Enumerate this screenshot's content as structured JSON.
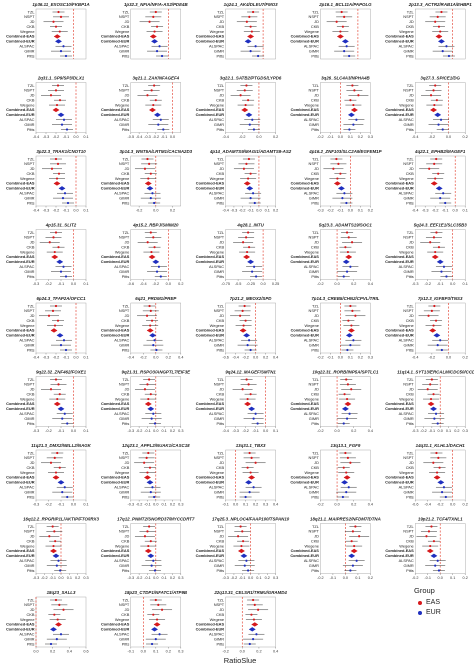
{
  "figure": {
    "x_axis_label": "RatioSlue",
    "legend": {
      "title": "Group",
      "items": [
        {
          "label": "EAS",
          "color": "#d7191c"
        },
        {
          "label": "EUR",
          "color": "#1f2fbf"
        }
      ]
    }
  },
  "chart_data": {
    "type": "forest",
    "rows": [
      "TZL",
      "NSPT",
      "JD",
      "CKB",
      "Wegene",
      "Combined-EAS",
      "Combined-EUR",
      "ALSPAC",
      "GIMR",
      "Pitts"
    ],
    "row_groups": [
      "EAS",
      "EAS",
      "EAS",
      "EAS",
      "EAS",
      "EAS",
      "EUR",
      "EUR",
      "EUR",
      "EUR"
    ],
    "combined_rows": [
      "Combined-EAS",
      "Combined-EUR"
    ],
    "reference_line": 0,
    "panels": [
      {
        "title": "1p36.11_EXOSC10/FKBP1A",
        "xlim": [
          -0.3,
          0.1
        ],
        "ticks": [],
        "est": [
          -0.12,
          -0.1,
          -0.16,
          -0.14,
          -0.11,
          -0.13,
          -0.12,
          -0.08,
          -0.1,
          -0.06
        ]
      },
      {
        "title": "1p32.3_NFIA/NFIA-AS2/PDE4B",
        "xlim": [
          -0.3,
          0.1
        ],
        "ticks": [],
        "est": [
          -0.1,
          -0.12,
          -0.15,
          -0.09,
          -0.11,
          -0.12,
          -0.11,
          -0.07,
          -0.09,
          -0.05
        ]
      },
      {
        "title": "1q24.1_AK4/DLEU7/FMO3",
        "xlim": [
          -0.3,
          0.1
        ],
        "ticks": [],
        "est": [
          -0.08,
          -0.11,
          -0.13,
          -0.1,
          -0.09,
          -0.1,
          -0.12,
          -0.06,
          -0.1,
          -0.04
        ]
      },
      {
        "title": "2p16.1_BCL11A/PAPOLG",
        "xlim": [
          -0.3,
          0.1
        ],
        "ticks": [],
        "est": [
          -0.13,
          -0.11,
          -0.17,
          -0.12,
          -0.14,
          -0.14,
          -0.1,
          -0.09,
          -0.11,
          -0.07
        ]
      },
      {
        "title": "2p13.3_ACTR2/RAB1A/EHBP1",
        "xlim": [
          -0.3,
          0.1
        ],
        "ticks": [],
        "est": [
          -0.09,
          -0.12,
          -0.14,
          -0.11,
          -0.1,
          -0.11,
          -0.09,
          -0.05,
          -0.08,
          -0.03
        ]
      },
      {
        "title": "2q31.1_SP9/SP3/DLX1",
        "xlim": [
          -0.4,
          0.1
        ],
        "ticks": [
          -0.4,
          -0.3,
          -0.2,
          -0.1,
          0.0,
          0.1
        ],
        "est": [
          -0.18,
          -0.2,
          -0.25,
          -0.16,
          -0.19,
          -0.2,
          -0.15,
          -0.12,
          -0.14,
          -0.09
        ]
      },
      {
        "title": "3q21.1_ZAK/NFAGEF4",
        "xlim": [
          -0.5,
          0.1
        ],
        "ticks": [
          -0.5,
          -0.4,
          -0.3,
          -0.2,
          -0.1,
          0.0
        ],
        "est": [
          -0.22,
          -0.25,
          -0.3,
          -0.2,
          -0.23,
          -0.24,
          -0.18,
          -0.14,
          -0.17,
          -0.11
        ]
      },
      {
        "title": "3q22.1_SATB2/PTGDS/LYPD6",
        "xlim": [
          -0.4,
          0.2
        ],
        "ticks": [
          -0.4,
          -0.2,
          0.0,
          0.2
        ],
        "est": [
          -0.15,
          -0.17,
          -0.22,
          -0.13,
          -0.16,
          -0.17,
          -0.12,
          -0.08,
          -0.11,
          -0.06
        ]
      },
      {
        "title": "3q26_SLC4A3/NPHA4B",
        "xlim": [
          -0.2,
          0.3
        ],
        "ticks": [
          -0.2,
          -0.1,
          0.0,
          0.1,
          0.2,
          0.3
        ],
        "est": [
          0.12,
          0.14,
          0.18,
          0.1,
          0.13,
          0.14,
          0.11,
          0.16,
          0.13,
          0.09
        ]
      },
      {
        "title": "3q27.3_SPICE1/DG",
        "xlim": [
          -0.4,
          0.2
        ],
        "ticks": [
          -0.4,
          -0.2,
          0.0,
          0.2
        ],
        "est": [
          -0.16,
          -0.18,
          -0.21,
          -0.14,
          -0.17,
          -0.18,
          -0.13,
          -0.09,
          -0.12,
          -0.07
        ]
      },
      {
        "title": "3p22.3_TRAK1/CNOT10",
        "xlim": [
          -0.4,
          0.1
        ],
        "ticks": [
          -0.4,
          -0.3,
          -0.2,
          -0.1,
          0.0,
          0.1
        ],
        "est": [
          -0.2,
          -0.18,
          -0.24,
          -0.17,
          -0.19,
          -0.19,
          -0.14,
          -0.11,
          -0.13,
          -0.08
        ]
      },
      {
        "title": "3p14.3_WNT5A/LRTM1/CACNA2D3",
        "xlim": [
          -0.3,
          0.3
        ],
        "ticks": [
          -0.2,
          0.0,
          0.2
        ],
        "est": [
          -0.1,
          -0.08,
          -0.13,
          -0.06,
          -0.09,
          -0.09,
          -0.07,
          -0.04,
          -0.06,
          -0.02
        ]
      },
      {
        "title": "4p14_ADAMTS9/MAGI1/ADAMTS9-AS2",
        "xlim": [
          -0.4,
          0.2
        ],
        "ticks": [
          -0.4,
          -0.3,
          -0.2,
          -0.1,
          0.0,
          0.1,
          0.2
        ],
        "est": [
          -0.12,
          -0.15,
          -0.18,
          -0.1,
          -0.13,
          -0.14,
          -0.11,
          -0.07,
          -0.1,
          -0.05
        ]
      },
      {
        "title": "4p16.2_ZNF103/SLC2A9/EGFEM1P",
        "xlim": [
          -0.3,
          0.2
        ],
        "ticks": [
          -0.3,
          -0.2,
          -0.1,
          0.0,
          0.1,
          0.2
        ],
        "est": [
          -0.14,
          -0.12,
          -0.17,
          -0.1,
          -0.13,
          -0.13,
          -0.09,
          -0.06,
          -0.08,
          -0.04
        ]
      },
      {
        "title": "4q22.1_EPHB2/MAGEF1",
        "xlim": [
          -0.4,
          0.1
        ],
        "ticks": [
          -0.4,
          -0.3,
          -0.2,
          -0.1,
          0.0,
          0.1
        ],
        "est": [
          -0.19,
          -0.21,
          -0.26,
          -0.17,
          -0.2,
          -0.21,
          -0.16,
          -0.12,
          -0.15,
          -0.1
        ]
      },
      {
        "title": "4p15.31_SLIT2",
        "xlim": [
          -0.3,
          0.1
        ],
        "ticks": [
          -0.3,
          -0.2,
          -0.1,
          0.0,
          0.1
        ],
        "est": [
          -0.14,
          -0.16,
          -0.19,
          -0.12,
          -0.15,
          -0.15,
          -0.11,
          -0.08,
          -0.1,
          -0.06
        ]
      },
      {
        "title": "4p15.2_RBPJ/SMIM20",
        "xlim": [
          -0.6,
          0.2
        ],
        "ticks": [
          -0.6,
          -0.4,
          -0.2,
          0.0,
          0.2
        ],
        "est": [
          -0.28,
          -0.24,
          -0.33,
          -0.22,
          -0.27,
          -0.26,
          -0.2,
          -0.15,
          -0.18,
          -0.12
        ]
      },
      {
        "title": "4q28.1_INTU",
        "xlim": [
          -0.75,
          0.25
        ],
        "ticks": [
          -0.75,
          -0.5,
          -0.25,
          0.0,
          0.25
        ],
        "est": [
          -0.3,
          -0.34,
          -0.4,
          -0.28,
          -0.32,
          -0.33,
          -0.25,
          -0.18,
          -0.22,
          -0.14
        ]
      },
      {
        "title": "5q23.3_ADAMTS19/SOC1",
        "xlim": [
          -0.2,
          0.4
        ],
        "ticks": [
          -0.2,
          0.0,
          0.2,
          0.4
        ],
        "est": [
          0.12,
          0.14,
          0.18,
          0.1,
          0.13,
          0.14,
          0.11,
          0.16,
          0.12,
          0.08
        ]
      },
      {
        "title": "5q24.3_EEF1E1/SLC35B3",
        "xlim": [
          -0.3,
          0.1
        ],
        "ticks": [
          -0.3,
          -0.2,
          -0.1,
          0.0,
          0.1
        ],
        "est": [
          -0.13,
          -0.15,
          -0.18,
          -0.11,
          -0.14,
          -0.14,
          -0.1,
          -0.07,
          -0.09,
          -0.05
        ]
      },
      {
        "title": "6p24.3_TFAP2A/OFCC1",
        "xlim": [
          -0.4,
          0.1
        ],
        "ticks": [
          -0.4,
          -0.3,
          -0.2,
          -0.1,
          0.0,
          0.1
        ],
        "est": [
          -0.2,
          -0.23,
          -0.27,
          -0.18,
          -0.21,
          -0.22,
          -0.16,
          -0.12,
          -0.15,
          -0.1
        ]
      },
      {
        "title": "6q21_PRDM1/PREP",
        "xlim": [
          -0.4,
          0.4
        ],
        "ticks": [
          -0.4,
          -0.2,
          0.0,
          0.2,
          0.4
        ],
        "est": [
          -0.1,
          -0.08,
          -0.14,
          -0.06,
          -0.09,
          -0.09,
          -0.05,
          -0.02,
          -0.04,
          0.01
        ]
      },
      {
        "title": "7p21.2_MEOX2/SPD",
        "xlim": [
          -0.6,
          0.4
        ],
        "ticks": [
          -0.6,
          -0.4,
          -0.2,
          0.0,
          0.2,
          0.4
        ],
        "est": [
          -0.22,
          -0.26,
          -0.31,
          -0.2,
          -0.24,
          -0.25,
          -0.18,
          -0.13,
          -0.16,
          -0.1
        ]
      },
      {
        "title": "7p14.3_CREB5/CHN2/CPVL/TRIL",
        "xlim": [
          -0.2,
          0.3
        ],
        "ticks": [
          -0.2,
          -0.1,
          0.0,
          0.1,
          0.2,
          0.3
        ],
        "est": [
          0.1,
          0.12,
          0.15,
          0.08,
          0.11,
          0.11,
          0.09,
          0.13,
          0.1,
          0.07
        ]
      },
      {
        "title": "7p12.3_IGFBP3/TNS3",
        "xlim": [
          -0.4,
          0.2
        ],
        "ticks": [
          -0.4,
          -0.2,
          0.0,
          0.2
        ],
        "est": [
          -0.17,
          -0.2,
          -0.24,
          -0.15,
          -0.18,
          -0.19,
          -0.14,
          -0.1,
          -0.13,
          -0.08
        ]
      },
      {
        "title": "9q22.32_ZNF462/FOXE1",
        "xlim": [
          -0.3,
          0.1
        ],
        "ticks": [
          -0.3,
          -0.2,
          -0.1,
          0.0,
          0.1
        ],
        "est": [
          -0.14,
          -0.12,
          -0.18,
          -0.11,
          -0.13,
          -0.13,
          -0.1,
          -0.07,
          -0.09,
          -0.05
        ]
      },
      {
        "title": "9q21.31_RSPO3/ANGPTL7/EIF3E",
        "xlim": [
          -0.3,
          0.3
        ],
        "ticks": [
          -0.3,
          -0.2,
          -0.1,
          0.0,
          0.1,
          0.2,
          0.3
        ],
        "est": [
          -0.08,
          -0.1,
          -0.13,
          -0.06,
          -0.09,
          -0.09,
          -0.06,
          -0.03,
          -0.05,
          -0.01
        ]
      },
      {
        "title": "9q24.12_MAGEF/SMTN1",
        "xlim": [
          -0.4,
          0.1
        ],
        "ticks": [
          -0.4,
          -0.3,
          -0.2,
          -0.1,
          0.0,
          0.1
        ],
        "est": [
          -0.19,
          -0.17,
          -0.23,
          -0.15,
          -0.18,
          -0.18,
          -0.14,
          -0.1,
          -0.12,
          -0.08
        ]
      },
      {
        "title": "10q22.31_RORB/INP5A/SPTLC1",
        "xlim": [
          -0.2,
          0.4
        ],
        "ticks": [
          -0.2,
          0.0,
          0.2,
          0.4
        ],
        "est": [
          0.11,
          0.13,
          0.17,
          0.09,
          0.12,
          0.13,
          0.1,
          0.15,
          0.12,
          0.08
        ]
      },
      {
        "title": "11q14.1_SYT13/ERCALM/CDC50/CCDC81",
        "xlim": [
          -0.3,
          0.3
        ],
        "ticks": [
          -0.3,
          -0.2,
          -0.1,
          0.0,
          0.1,
          0.2,
          0.3
        ],
        "est": [
          -0.1,
          -0.12,
          -0.15,
          -0.08,
          -0.11,
          -0.11,
          -0.08,
          -0.05,
          -0.07,
          -0.03
        ]
      },
      {
        "title": "11q21.3_DMX2/NELL2/NAGK",
        "xlim": [
          -0.3,
          0.1
        ],
        "ticks": [
          -0.3,
          -0.2,
          -0.1,
          0.0,
          0.1
        ],
        "est": [
          -0.13,
          -0.15,
          -0.18,
          -0.11,
          -0.14,
          -0.14,
          -0.1,
          -0.07,
          -0.09,
          -0.05
        ]
      },
      {
        "title": "12q23.1_APPL2/NUAK1/CASC18",
        "xlim": [
          -0.3,
          0.3
        ],
        "ticks": [
          -0.3,
          -0.2,
          -0.1,
          0.0,
          0.1,
          0.2,
          0.3
        ],
        "est": [
          -0.09,
          -0.11,
          -0.14,
          -0.07,
          -0.1,
          -0.1,
          -0.07,
          -0.04,
          -0.06,
          -0.02
        ]
      },
      {
        "title": "13q31.1_TBX3",
        "xlim": [
          -0.1,
          0.4
        ],
        "ticks": [
          -0.1,
          0.0,
          0.1,
          0.2,
          0.3,
          0.4
        ],
        "est": [
          0.14,
          0.16,
          0.2,
          0.12,
          0.15,
          0.16,
          0.13,
          0.18,
          0.14,
          0.1
        ]
      },
      {
        "title": "13q13.1_FGF9",
        "xlim": [
          -0.2,
          0.4
        ],
        "ticks": [
          -0.2,
          0.0,
          0.2,
          0.4
        ],
        "est": [
          0.1,
          0.13,
          0.16,
          0.08,
          0.11,
          0.12,
          0.09,
          0.14,
          0.11,
          0.07
        ]
      },
      {
        "title": "14q31.1_KLHL1/DACH1",
        "xlim": [
          -0.6,
          0.2
        ],
        "ticks": [
          -0.6,
          -0.4,
          -0.2,
          0.0,
          0.2
        ],
        "est": [
          -0.26,
          -0.23,
          -0.31,
          -0.21,
          -0.25,
          -0.25,
          -0.19,
          -0.14,
          -0.17,
          -0.11
        ]
      },
      {
        "title": "16q12.2_RPGRIP1L/AKTIP/FTO/IRX3",
        "xlim": [
          -0.3,
          0.3
        ],
        "ticks": [
          -0.3,
          -0.2,
          -0.1,
          0.0,
          0.1,
          0.2,
          0.3
        ],
        "est": [
          -0.1,
          -0.08,
          -0.14,
          -0.07,
          -0.09,
          -0.09,
          -0.06,
          -0.03,
          -0.05,
          -0.01
        ]
      },
      {
        "title": "17q12_PNMT2/SNORD37/MYCCDRT7",
        "xlim": [
          -0.3,
          0.3
        ],
        "ticks": [
          -0.3,
          -0.2,
          -0.1,
          0.0,
          0.1,
          0.2,
          0.3
        ],
        "est": [
          -0.08,
          -0.1,
          -0.13,
          -0.06,
          -0.09,
          -0.09,
          -0.06,
          -0.03,
          -0.05,
          -0.01
        ]
      },
      {
        "title": "17q25.3_NPLOC4/FAAP100/TSPAN10",
        "xlim": [
          -0.3,
          0.3
        ],
        "ticks": [
          -0.3,
          -0.2,
          -0.1,
          0.0,
          0.1,
          0.2,
          0.3
        ],
        "est": [
          -0.12,
          -0.1,
          -0.15,
          -0.09,
          -0.11,
          -0.11,
          -0.08,
          -0.05,
          -0.07,
          -0.03
        ]
      },
      {
        "title": "18q21.1_MAIPRES2/NFDM7/DTNA",
        "xlim": [
          -0.2,
          0.2
        ],
        "ticks": [
          -0.2,
          -0.1,
          0.0,
          0.1,
          0.2
        ],
        "est": [
          0.08,
          0.06,
          0.11,
          0.05,
          0.07,
          0.07,
          0.05,
          0.09,
          0.06,
          0.04
        ]
      },
      {
        "title": "19p21.2_TCF4/TXNL1",
        "xlim": [
          -0.2,
          0.2
        ],
        "ticks": [
          -0.2,
          -0.1,
          0.0,
          0.1,
          0.2
        ],
        "est": [
          -0.07,
          -0.09,
          -0.11,
          -0.05,
          -0.08,
          -0.08,
          -0.05,
          -0.02,
          -0.04,
          -0.01
        ]
      },
      {
        "title": "18q23_SALL3",
        "xlim": [
          0.0,
          0.6
        ],
        "ticks": [
          0.0,
          0.2,
          0.4,
          0.6
        ],
        "est": [
          0.24,
          0.28,
          0.33,
          0.22,
          0.26,
          0.27,
          0.21,
          0.3,
          0.25,
          0.18
        ]
      },
      {
        "title": "18p23_CTDP1/NFATC1/ATP9B",
        "xlim": [
          -0.1,
          0.3
        ],
        "ticks": [
          -0.1,
          0.0,
          0.1,
          0.2,
          0.3
        ],
        "est": [
          0.1,
          0.12,
          0.15,
          0.08,
          0.11,
          0.11,
          0.09,
          0.13,
          0.1,
          0.07
        ]
      },
      {
        "title": "22q13.31_CELSR1/TRMU/GRAMD4",
        "xlim": [
          -0.2,
          0.4
        ],
        "ticks": [
          -0.2,
          0.0,
          0.2,
          0.4
        ],
        "est": [
          0.13,
          0.15,
          0.19,
          0.11,
          0.14,
          0.15,
          0.12,
          0.17,
          0.13,
          0.09
        ]
      }
    ]
  }
}
